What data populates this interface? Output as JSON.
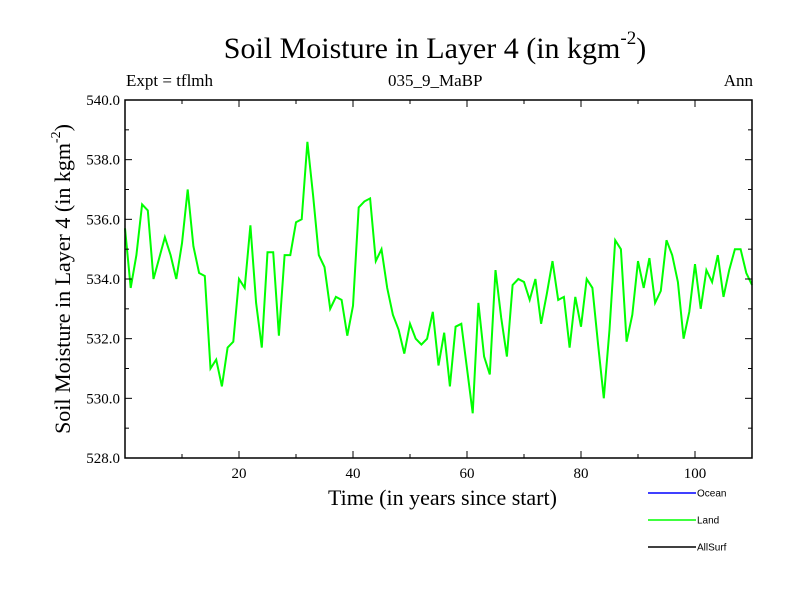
{
  "chart_data": {
    "type": "line",
    "title": "Soil Moisture in Layer 4 (in kgm",
    "title_sup": "-2",
    "title_close": ")",
    "subtitle_left": "Expt = tflmh",
    "subtitle_center": "035_9_MaBP",
    "subtitle_right": "Ann",
    "xlabel": "Time (in years since start)",
    "ylabel": "Soil Moisture in Layer 4 (in kgm",
    "ylabel_sup": "-2",
    "ylabel_close": ")",
    "xlim": [
      0,
      110
    ],
    "ylim": [
      528,
      540
    ],
    "xticks": [
      20,
      40,
      60,
      80,
      100
    ],
    "xtick_labels": [
      "20",
      "40",
      "60",
      "80",
      "100"
    ],
    "yticks": [
      528,
      530,
      532,
      534,
      536,
      538,
      540
    ],
    "ytick_labels": [
      "528.0",
      "530.0",
      "532.0",
      "534.0",
      "536.0",
      "538.0",
      "540.0"
    ],
    "series": [
      {
        "name": "Land",
        "color": "#00ff00",
        "x": [
          0,
          1,
          2,
          3,
          4,
          5,
          6,
          7,
          8,
          9,
          10,
          11,
          12,
          13,
          14,
          15,
          16,
          17,
          18,
          19,
          20,
          21,
          22,
          23,
          24,
          25,
          26,
          27,
          28,
          29,
          30,
          31,
          32,
          33,
          34,
          35,
          36,
          37,
          38,
          39,
          40,
          41,
          42,
          43,
          44,
          45,
          46,
          47,
          48,
          49,
          50,
          51,
          52,
          53,
          54,
          55,
          56,
          57,
          58,
          59,
          60,
          61,
          62,
          63,
          64,
          65,
          66,
          67,
          68,
          69,
          70,
          71,
          72,
          73,
          74,
          75,
          76,
          77,
          78,
          79,
          80,
          81,
          82,
          83,
          84,
          85,
          86,
          87,
          88,
          89,
          90,
          91,
          92,
          93,
          94,
          95,
          96,
          97,
          98,
          99,
          100,
          101,
          102,
          103,
          104,
          105,
          106,
          107,
          108,
          109,
          110
        ],
        "values": [
          535.7,
          533.7,
          534.8,
          536.5,
          536.3,
          534.0,
          534.7,
          535.4,
          534.8,
          534.0,
          535.2,
          537.0,
          535.1,
          534.2,
          534.1,
          531.0,
          531.3,
          530.4,
          531.7,
          531.9,
          534.0,
          533.7,
          535.8,
          533.2,
          531.7,
          534.9,
          534.9,
          532.1,
          534.8,
          534.8,
          535.9,
          536.0,
          538.6,
          536.8,
          534.8,
          534.4,
          533.0,
          533.4,
          533.3,
          532.1,
          533.1,
          536.4,
          536.6,
          536.7,
          534.6,
          535.0,
          533.7,
          532.8,
          532.3,
          531.5,
          532.5,
          532.0,
          531.8,
          532.0,
          532.9,
          531.1,
          532.2,
          530.4,
          532.4,
          532.5,
          531.0,
          529.5,
          533.2,
          531.4,
          530.8,
          534.3,
          532.7,
          531.4,
          533.8,
          534.0,
          533.9,
          533.3,
          534.0,
          532.5,
          533.5,
          534.6,
          533.3,
          533.4,
          531.7,
          533.4,
          532.4,
          534.0,
          533.7,
          531.8,
          530.0,
          532.3,
          535.3,
          535.0,
          531.9,
          532.8,
          534.6,
          533.7,
          534.7,
          533.2,
          533.6,
          535.3,
          534.8,
          533.9,
          532.0,
          532.9,
          534.5,
          533.0,
          534.3,
          533.9,
          534.8,
          533.4,
          534.3,
          535.0,
          535.0,
          534.2,
          533.8
        ]
      }
    ],
    "legend": [
      {
        "label": "Ocean",
        "color": "#0000ff"
      },
      {
        "label": "Land",
        "color": "#00ff00"
      },
      {
        "label": "AllSurf",
        "color": "#000000"
      }
    ],
    "legend_position": "bottom-right"
  }
}
